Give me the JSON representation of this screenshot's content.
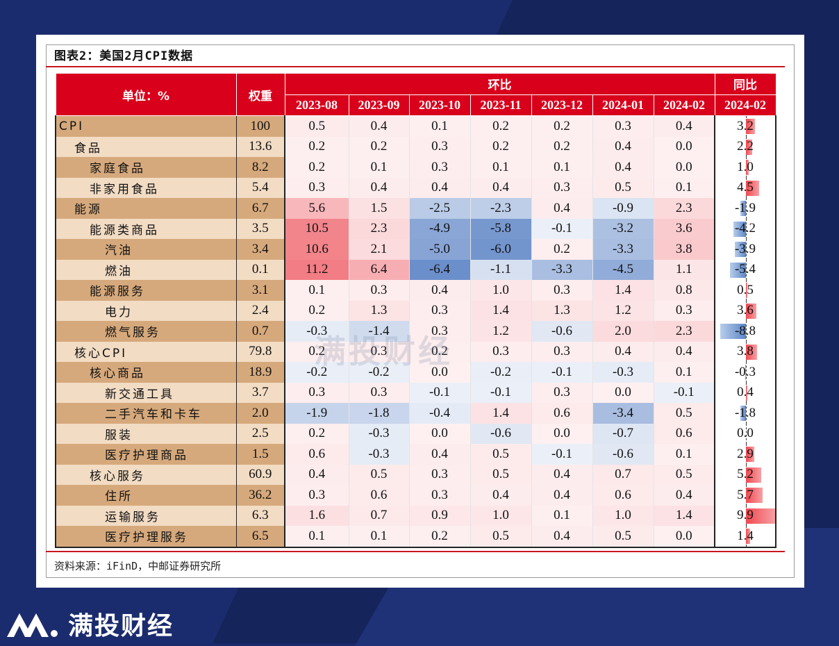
{
  "title": "图表2：美国2月CPI数据",
  "source": "资料来源：iFinD，中邮证券研究所",
  "brand": "满投财经",
  "watermark": "满投财经",
  "colors": {
    "header_red": "#d9001b",
    "pos": "#f04850",
    "neg": "#5b86c8"
  },
  "chart_data": {
    "type": "table",
    "headers": {
      "unit": "单位：%",
      "weight": "权重",
      "mom": "环比",
      "yoy": "同比",
      "mom_periods": [
        "2023-08",
        "2023-09",
        "2023-10",
        "2023-11",
        "2023-12",
        "2024-01",
        "2024-02"
      ],
      "yoy_period": "2024-02"
    },
    "rows": [
      {
        "name": "CPI",
        "level": 0,
        "weight": "100",
        "mom": [
          "0.5",
          "0.4",
          "0.1",
          "0.2",
          "0.2",
          "0.3",
          "0.4"
        ],
        "yoy": "3.2"
      },
      {
        "name": "食品",
        "level": 1,
        "weight": "13.6",
        "mom": [
          "0.2",
          "0.2",
          "0.3",
          "0.2",
          "0.2",
          "0.4",
          "0.0"
        ],
        "yoy": "2.2"
      },
      {
        "name": "家庭食品",
        "level": 2,
        "weight": "8.2",
        "mom": [
          "0.2",
          "0.1",
          "0.3",
          "0.1",
          "0.1",
          "0.4",
          "0.0"
        ],
        "yoy": "1.0"
      },
      {
        "name": "非家用食品",
        "level": 2,
        "weight": "5.4",
        "mom": [
          "0.3",
          "0.4",
          "0.4",
          "0.4",
          "0.3",
          "0.5",
          "0.1"
        ],
        "yoy": "4.5"
      },
      {
        "name": "能源",
        "level": 1,
        "weight": "6.7",
        "mom": [
          "5.6",
          "1.5",
          "-2.5",
          "-2.3",
          "0.4",
          "-0.9",
          "2.3"
        ],
        "yoy": "-1.9"
      },
      {
        "name": "能源类商品",
        "level": 2,
        "weight": "3.5",
        "mom": [
          "10.5",
          "2.3",
          "-4.9",
          "-5.8",
          "-0.1",
          "-3.2",
          "3.6"
        ],
        "yoy": "-4.2"
      },
      {
        "name": "汽油",
        "level": 3,
        "weight": "3.4",
        "mom": [
          "10.6",
          "2.1",
          "-5.0",
          "-6.0",
          "0.2",
          "-3.3",
          "3.8"
        ],
        "yoy": "-3.9"
      },
      {
        "name": "燃油",
        "level": 3,
        "weight": "0.1",
        "mom": [
          "11.2",
          "6.4",
          "-6.4",
          "-1.1",
          "-3.3",
          "-4.5",
          "1.1"
        ],
        "yoy": "-5.4"
      },
      {
        "name": "能源服务",
        "level": 2,
        "weight": "3.1",
        "mom": [
          "0.1",
          "0.3",
          "0.4",
          "1.0",
          "0.3",
          "1.4",
          "0.8"
        ],
        "yoy": "0.5"
      },
      {
        "name": "电力",
        "level": 3,
        "weight": "2.4",
        "mom": [
          "0.2",
          "1.3",
          "0.3",
          "1.4",
          "1.3",
          "1.2",
          "0.3"
        ],
        "yoy": "3.6"
      },
      {
        "name": "燃气服务",
        "level": 3,
        "weight": "0.7",
        "mom": [
          "-0.3",
          "-1.4",
          "0.3",
          "1.2",
          "-0.6",
          "2.0",
          "2.3"
        ],
        "yoy": "-8.8"
      },
      {
        "name": "核心CPI",
        "level": 1,
        "weight": "79.8",
        "mom": [
          "0.2",
          "0.3",
          "0.2",
          "0.3",
          "0.3",
          "0.4",
          "0.4"
        ],
        "yoy": "3.8"
      },
      {
        "name": "核心商品",
        "level": 2,
        "weight": "18.9",
        "mom": [
          "-0.2",
          "-0.2",
          "0.0",
          "-0.2",
          "-0.1",
          "-0.3",
          "0.1"
        ],
        "yoy": "-0.3"
      },
      {
        "name": "新交通工具",
        "level": 3,
        "weight": "3.7",
        "mom": [
          "0.3",
          "0.3",
          "-0.1",
          "-0.1",
          "0.3",
          "0.0",
          "-0.1"
        ],
        "yoy": "0.4"
      },
      {
        "name": "二手汽车和卡车",
        "level": 3,
        "weight": "2.0",
        "mom": [
          "-1.9",
          "-1.8",
          "-0.4",
          "1.4",
          "0.6",
          "-3.4",
          "0.5"
        ],
        "yoy": "-1.8"
      },
      {
        "name": "服装",
        "level": 3,
        "weight": "2.5",
        "mom": [
          "0.2",
          "-0.3",
          "0.0",
          "-0.6",
          "0.0",
          "-0.7",
          "0.6"
        ],
        "yoy": "0.0"
      },
      {
        "name": "医疗护理商品",
        "level": 3,
        "weight": "1.5",
        "mom": [
          "0.6",
          "-0.3",
          "0.4",
          "0.5",
          "-0.1",
          "-0.6",
          "0.1"
        ],
        "yoy": "2.9"
      },
      {
        "name": "核心服务",
        "level": 2,
        "weight": "60.9",
        "mom": [
          "0.4",
          "0.5",
          "0.3",
          "0.5",
          "0.4",
          "0.7",
          "0.5"
        ],
        "yoy": "5.2"
      },
      {
        "name": "住所",
        "level": 3,
        "weight": "36.2",
        "mom": [
          "0.3",
          "0.6",
          "0.3",
          "0.4",
          "0.4",
          "0.6",
          "0.4"
        ],
        "yoy": "5.7"
      },
      {
        "name": "运输服务",
        "level": 3,
        "weight": "6.3",
        "mom": [
          "1.6",
          "0.7",
          "0.9",
          "1.0",
          "0.1",
          "1.0",
          "1.4"
        ],
        "yoy": "9.9"
      },
      {
        "name": "医疗护理服务",
        "level": 3,
        "weight": "6.5",
        "mom": [
          "0.1",
          "0.1",
          "0.2",
          "0.5",
          "0.4",
          "0.5",
          "0.0"
        ],
        "yoy": "1.4"
      }
    ]
  }
}
